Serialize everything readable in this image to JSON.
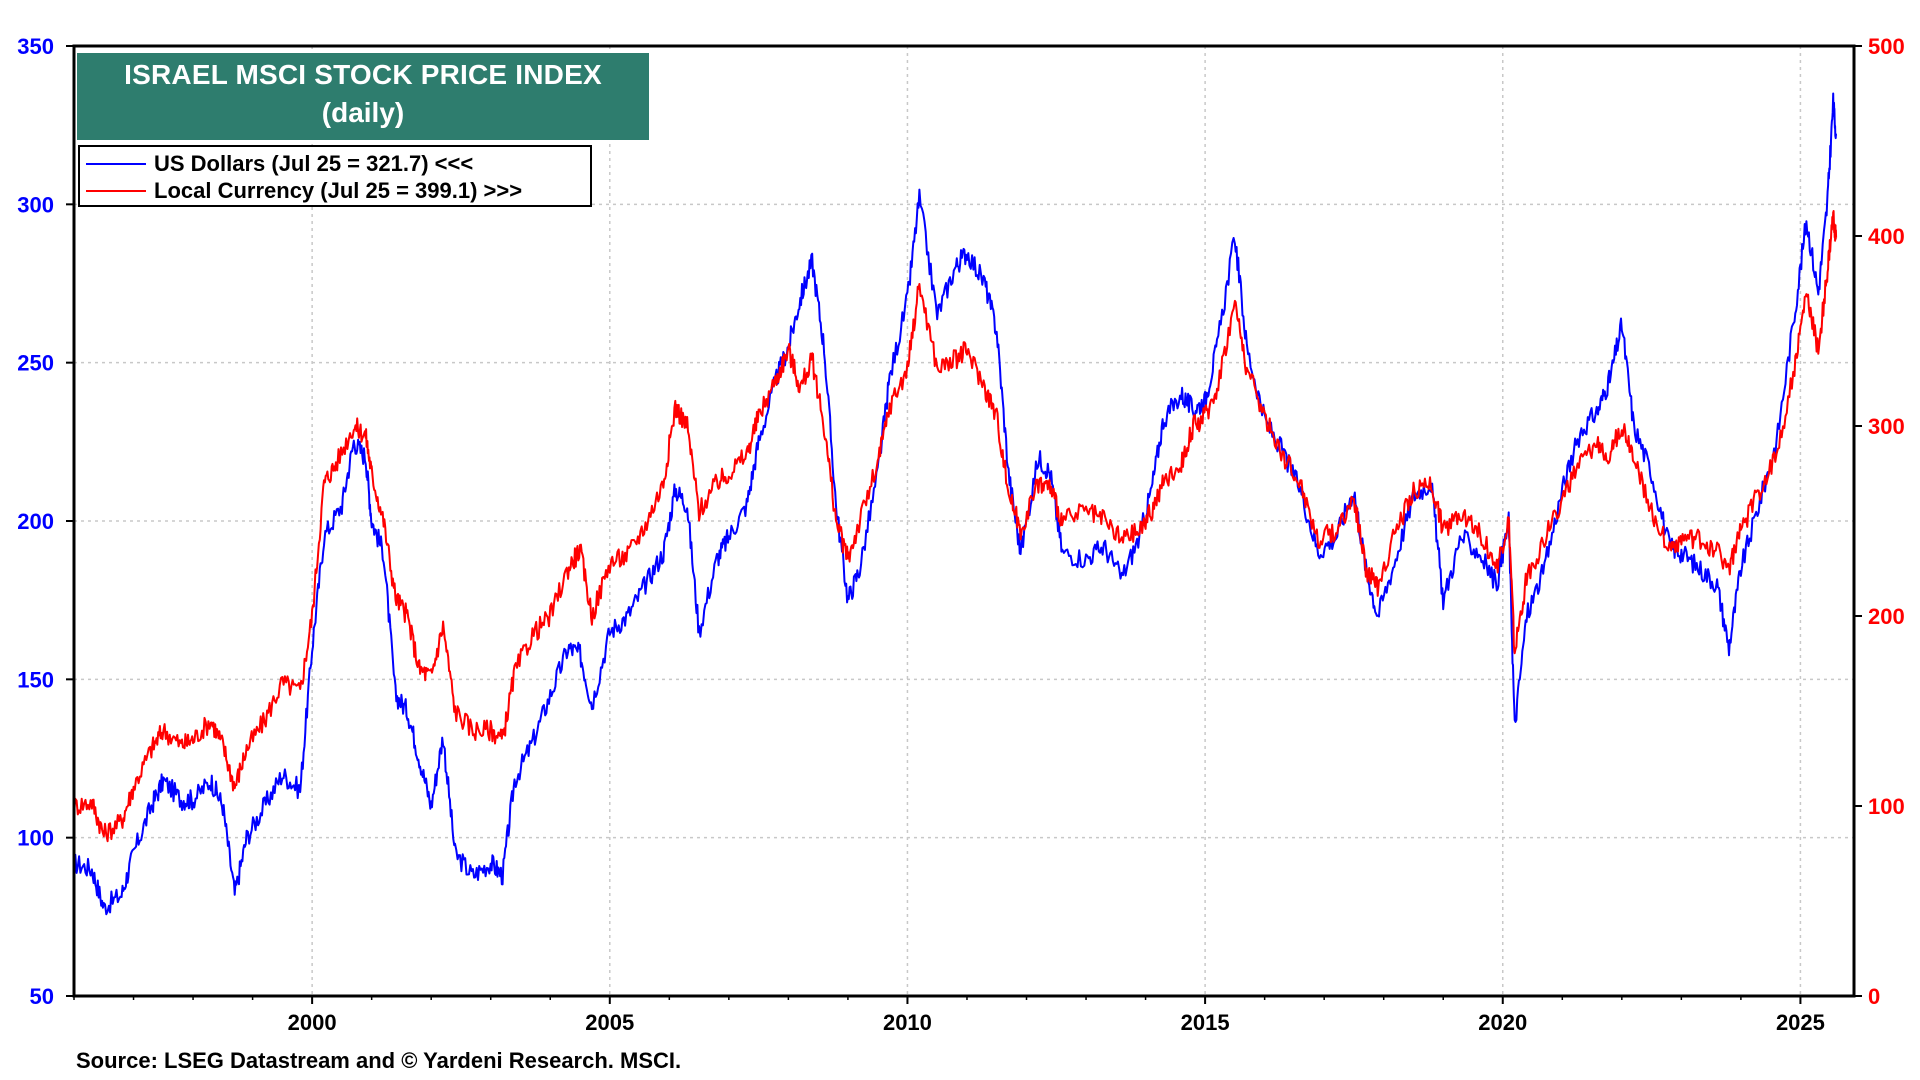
{
  "chart_data": {
    "type": "line",
    "title": "ISRAEL MSCI STOCK PRICE INDEX",
    "subtitle": "(daily)",
    "source": "Source: LSEG Datastream and © Yardeni Research. MSCI.",
    "x_ticks": [
      "2000",
      "2005",
      "2010",
      "2015",
      "2020",
      "2025"
    ],
    "xlim": [
      1996.0,
      2025.9
    ],
    "grid": true,
    "legend_position": "top-left",
    "axes": {
      "left": {
        "ylim": [
          50,
          350
        ],
        "ticks": [
          "50",
          "100",
          "150",
          "200",
          "250",
          "300",
          "350"
        ],
        "color": "#0000ff"
      },
      "right": {
        "ylim": [
          0,
          500
        ],
        "ticks": [
          "0",
          "100",
          "200",
          "300",
          "400",
          "500"
        ],
        "color": "#ff0000"
      }
    },
    "series": [
      {
        "name": "US Dollars (Jul 25 = 321.7) <<<",
        "axis": "left",
        "color": "#0000ff",
        "points": [
          [
            1996.0,
            92
          ],
          [
            1996.3,
            90
          ],
          [
            1996.5,
            78
          ],
          [
            1996.8,
            82
          ],
          [
            1997.0,
            95
          ],
          [
            1997.3,
            110
          ],
          [
            1997.5,
            118
          ],
          [
            1997.8,
            112
          ],
          [
            1998.0,
            112
          ],
          [
            1998.3,
            118
          ],
          [
            1998.5,
            110
          ],
          [
            1998.7,
            82
          ],
          [
            1998.9,
            100
          ],
          [
            1999.2,
            110
          ],
          [
            1999.5,
            120
          ],
          [
            1999.8,
            115
          ],
          [
            2000.0,
            160
          ],
          [
            2000.2,
            195
          ],
          [
            2000.5,
            205
          ],
          [
            2000.7,
            225
          ],
          [
            2000.9,
            220
          ],
          [
            2001.0,
            200
          ],
          [
            2001.2,
            190
          ],
          [
            2001.4,
            145
          ],
          [
            2001.6,
            140
          ],
          [
            2001.8,
            125
          ],
          [
            2002.0,
            110
          ],
          [
            2002.2,
            132
          ],
          [
            2002.4,
            95
          ],
          [
            2002.7,
            88
          ],
          [
            2003.0,
            92
          ],
          [
            2003.2,
            88
          ],
          [
            2003.4,
            118
          ],
          [
            2003.7,
            130
          ],
          [
            2004.0,
            145
          ],
          [
            2004.3,
            160
          ],
          [
            2004.5,
            158
          ],
          [
            2004.7,
            142
          ],
          [
            2005.0,
            165
          ],
          [
            2005.3,
            170
          ],
          [
            2005.6,
            180
          ],
          [
            2005.9,
            190
          ],
          [
            2006.1,
            210
          ],
          [
            2006.3,
            205
          ],
          [
            2006.5,
            165
          ],
          [
            2006.8,
            188
          ],
          [
            2007.0,
            195
          ],
          [
            2007.3,
            205
          ],
          [
            2007.5,
            225
          ],
          [
            2007.8,
            245
          ],
          [
            2008.0,
            255
          ],
          [
            2008.2,
            270
          ],
          [
            2008.4,
            282
          ],
          [
            2008.6,
            255
          ],
          [
            2008.8,
            205
          ],
          [
            2009.0,
            175
          ],
          [
            2009.2,
            185
          ],
          [
            2009.5,
            215
          ],
          [
            2009.7,
            245
          ],
          [
            2010.0,
            270
          ],
          [
            2010.2,
            302
          ],
          [
            2010.5,
            265
          ],
          [
            2010.8,
            280
          ],
          [
            2011.0,
            285
          ],
          [
            2011.3,
            275
          ],
          [
            2011.5,
            260
          ],
          [
            2011.7,
            215
          ],
          [
            2011.9,
            190
          ],
          [
            2012.2,
            220
          ],
          [
            2012.4,
            215
          ],
          [
            2012.6,
            190
          ],
          [
            2013.0,
            188
          ],
          [
            2013.3,
            192
          ],
          [
            2013.6,
            182
          ],
          [
            2013.9,
            195
          ],
          [
            2014.1,
            210
          ],
          [
            2014.3,
            232
          ],
          [
            2014.6,
            240
          ],
          [
            2014.8,
            235
          ],
          [
            2015.0,
            238
          ],
          [
            2015.2,
            255
          ],
          [
            2015.5,
            290
          ],
          [
            2015.7,
            255
          ],
          [
            2016.0,
            232
          ],
          [
            2016.3,
            222
          ],
          [
            2016.6,
            210
          ],
          [
            2016.9,
            190
          ],
          [
            2017.2,
            195
          ],
          [
            2017.5,
            210
          ],
          [
            2017.7,
            185
          ],
          [
            2017.9,
            170
          ],
          [
            2018.2,
            188
          ],
          [
            2018.5,
            208
          ],
          [
            2018.8,
            212
          ],
          [
            2019.0,
            175
          ],
          [
            2019.3,
            195
          ],
          [
            2019.6,
            190
          ],
          [
            2019.9,
            180
          ],
          [
            2020.1,
            200
          ],
          [
            2020.2,
            135
          ],
          [
            2020.4,
            170
          ],
          [
            2020.7,
            185
          ],
          [
            2021.0,
            210
          ],
          [
            2021.3,
            228
          ],
          [
            2021.6,
            235
          ],
          [
            2021.8,
            245
          ],
          [
            2022.0,
            262
          ],
          [
            2022.2,
            230
          ],
          [
            2022.5,
            215
          ],
          [
            2022.8,
            192
          ],
          [
            2023.0,
            190
          ],
          [
            2023.3,
            185
          ],
          [
            2023.6,
            180
          ],
          [
            2023.8,
            160
          ],
          [
            2024.0,
            185
          ],
          [
            2024.3,
            205
          ],
          [
            2024.6,
            225
          ],
          [
            2024.9,
            265
          ],
          [
            2025.1,
            295
          ],
          [
            2025.3,
            272
          ],
          [
            2025.45,
            300
          ],
          [
            2025.55,
            332
          ],
          [
            2025.6,
            321.7
          ]
        ]
      },
      {
        "name": "Local Currency (Jul 25 = 399.1) >>>",
        "axis": "right",
        "color": "#ff0000",
        "points": [
          [
            1996.0,
            100
          ],
          [
            1996.3,
            102
          ],
          [
            1996.5,
            85
          ],
          [
            1996.8,
            92
          ],
          [
            1997.0,
            110
          ],
          [
            1997.3,
            130
          ],
          [
            1997.5,
            140
          ],
          [
            1997.8,
            132
          ],
          [
            1998.0,
            135
          ],
          [
            1998.3,
            145
          ],
          [
            1998.5,
            132
          ],
          [
            1998.7,
            110
          ],
          [
            1998.9,
            130
          ],
          [
            1999.2,
            145
          ],
          [
            1999.5,
            165
          ],
          [
            1999.8,
            160
          ],
          [
            2000.0,
            200
          ],
          [
            2000.2,
            270
          ],
          [
            2000.4,
            280
          ],
          [
            2000.7,
            300
          ],
          [
            2000.9,
            295
          ],
          [
            2001.0,
            275
          ],
          [
            2001.2,
            250
          ],
          [
            2001.4,
            210
          ],
          [
            2001.6,
            200
          ],
          [
            2001.8,
            172
          ],
          [
            2002.0,
            168
          ],
          [
            2002.2,
            195
          ],
          [
            2002.4,
            150
          ],
          [
            2002.7,
            140
          ],
          [
            2003.0,
            140
          ],
          [
            2003.2,
            135
          ],
          [
            2003.4,
            170
          ],
          [
            2003.7,
            190
          ],
          [
            2004.0,
            200
          ],
          [
            2004.3,
            225
          ],
          [
            2004.5,
            235
          ],
          [
            2004.7,
            200
          ],
          [
            2005.0,
            228
          ],
          [
            2005.3,
            232
          ],
          [
            2005.6,
            248
          ],
          [
            2005.9,
            270
          ],
          [
            2006.1,
            310
          ],
          [
            2006.3,
            300
          ],
          [
            2006.5,
            255
          ],
          [
            2006.8,
            270
          ],
          [
            2007.0,
            275
          ],
          [
            2007.3,
            285
          ],
          [
            2007.5,
            305
          ],
          [
            2007.8,
            325
          ],
          [
            2008.0,
            340
          ],
          [
            2008.2,
            320
          ],
          [
            2008.4,
            335
          ],
          [
            2008.6,
            300
          ],
          [
            2008.8,
            250
          ],
          [
            2009.0,
            230
          ],
          [
            2009.2,
            250
          ],
          [
            2009.5,
            280
          ],
          [
            2009.7,
            310
          ],
          [
            2010.0,
            330
          ],
          [
            2010.2,
            375
          ],
          [
            2010.5,
            330
          ],
          [
            2010.8,
            335
          ],
          [
            2011.0,
            340
          ],
          [
            2011.3,
            320
          ],
          [
            2011.5,
            305
          ],
          [
            2011.7,
            265
          ],
          [
            2011.9,
            245
          ],
          [
            2012.2,
            270
          ],
          [
            2012.4,
            268
          ],
          [
            2012.6,
            250
          ],
          [
            2013.0,
            255
          ],
          [
            2013.3,
            250
          ],
          [
            2013.6,
            240
          ],
          [
            2013.9,
            245
          ],
          [
            2014.1,
            255
          ],
          [
            2014.3,
            270
          ],
          [
            2014.6,
            280
          ],
          [
            2014.8,
            300
          ],
          [
            2015.0,
            305
          ],
          [
            2015.2,
            320
          ],
          [
            2015.5,
            365
          ],
          [
            2015.7,
            330
          ],
          [
            2016.0,
            305
          ],
          [
            2016.3,
            285
          ],
          [
            2016.6,
            270
          ],
          [
            2016.9,
            240
          ],
          [
            2017.2,
            245
          ],
          [
            2017.5,
            262
          ],
          [
            2017.7,
            225
          ],
          [
            2017.9,
            215
          ],
          [
            2018.2,
            245
          ],
          [
            2018.5,
            265
          ],
          [
            2018.8,
            270
          ],
          [
            2019.0,
            245
          ],
          [
            2019.3,
            255
          ],
          [
            2019.6,
            245
          ],
          [
            2019.9,
            225
          ],
          [
            2020.1,
            250
          ],
          [
            2020.2,
            180
          ],
          [
            2020.4,
            220
          ],
          [
            2020.7,
            240
          ],
          [
            2021.0,
            262
          ],
          [
            2021.3,
            280
          ],
          [
            2021.6,
            290
          ],
          [
            2021.8,
            285
          ],
          [
            2022.0,
            300
          ],
          [
            2022.2,
            285
          ],
          [
            2022.5,
            255
          ],
          [
            2022.8,
            235
          ],
          [
            2023.0,
            240
          ],
          [
            2023.3,
            240
          ],
          [
            2023.6,
            235
          ],
          [
            2023.8,
            225
          ],
          [
            2024.0,
            245
          ],
          [
            2024.3,
            265
          ],
          [
            2024.6,
            285
          ],
          [
            2024.9,
            330
          ],
          [
            2025.1,
            370
          ],
          [
            2025.3,
            340
          ],
          [
            2025.45,
            380
          ],
          [
            2025.55,
            410
          ],
          [
            2025.6,
            399.1
          ]
        ]
      }
    ]
  }
}
